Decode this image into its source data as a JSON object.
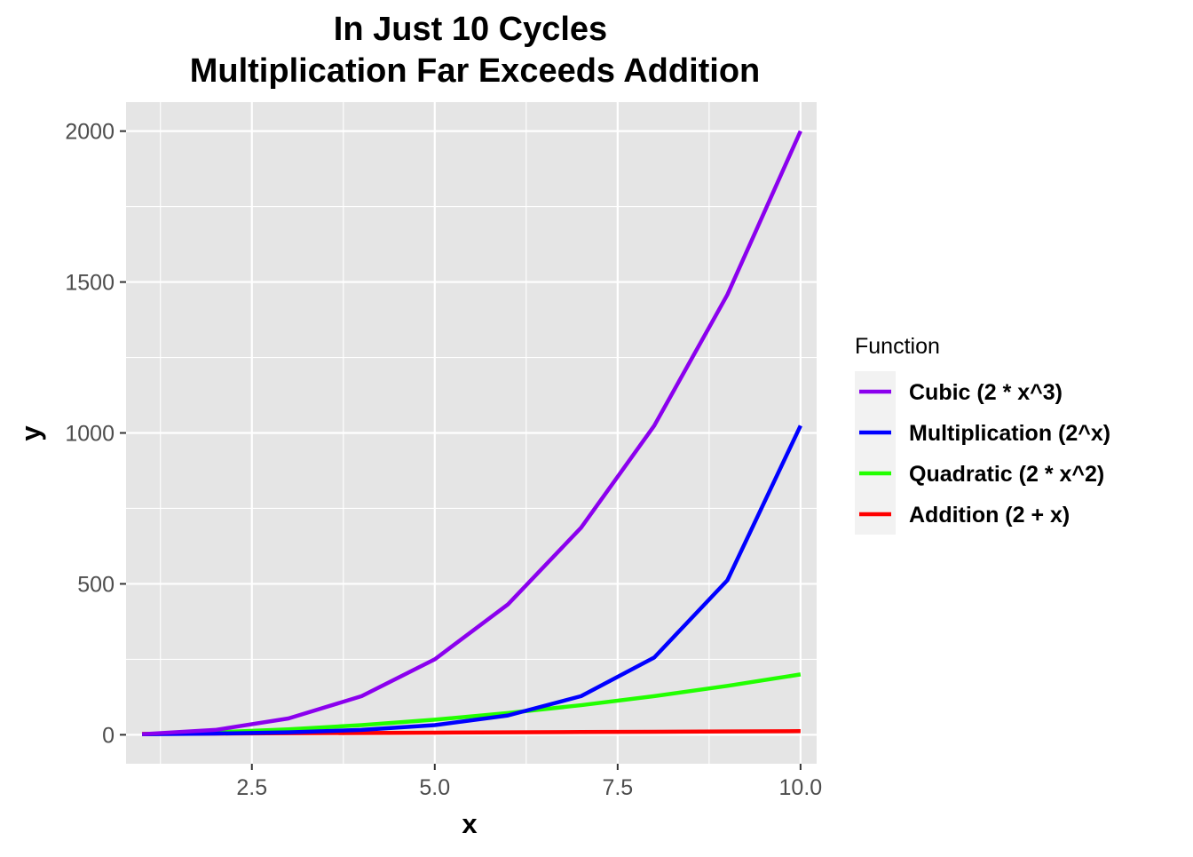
{
  "chart_data": {
    "type": "line",
    "title_lines": [
      "In Just 10 Cycles",
      "Multiplication Far Exceeds Addition"
    ],
    "xlabel": "x",
    "ylabel": "y",
    "x": [
      1,
      2,
      3,
      4,
      5,
      6,
      7,
      8,
      9,
      10
    ],
    "xlim": [
      0.78,
      10.22
    ],
    "ylim": [
      -96,
      2096
    ],
    "x_ticks": [
      2.5,
      5.0,
      7.5,
      10.0
    ],
    "x_tick_labels": [
      "2.5",
      "5.0",
      "7.5",
      "10.0"
    ],
    "y_ticks": [
      0,
      500,
      1000,
      1500,
      2000
    ],
    "y_tick_labels": [
      "0",
      "500",
      "1000",
      "1500",
      "2000"
    ],
    "grid": true,
    "panel_background": "#e5e5e5",
    "legend": {
      "title": "Function",
      "placement": "right",
      "key_background": "#f2f2f2"
    },
    "series": [
      {
        "name": "Cubic (2 * x^3)",
        "color": "#8B00EE",
        "values": [
          2,
          16,
          54,
          128,
          250,
          432,
          686,
          1024,
          1458,
          2000
        ]
      },
      {
        "name": "Multiplication (2^x)",
        "color": "#0000FF",
        "values": [
          2,
          4,
          8,
          16,
          32,
          64,
          128,
          256,
          512,
          1024
        ]
      },
      {
        "name": "Quadratic (2 * x^2)",
        "color": "#22FF00",
        "values": [
          2,
          8,
          18,
          32,
          50,
          72,
          98,
          128,
          162,
          200
        ]
      },
      {
        "name": "Addition (2 + x)",
        "color": "#FF0000",
        "values": [
          3,
          4,
          5,
          6,
          7,
          8,
          9,
          10,
          11,
          12
        ]
      }
    ]
  }
}
